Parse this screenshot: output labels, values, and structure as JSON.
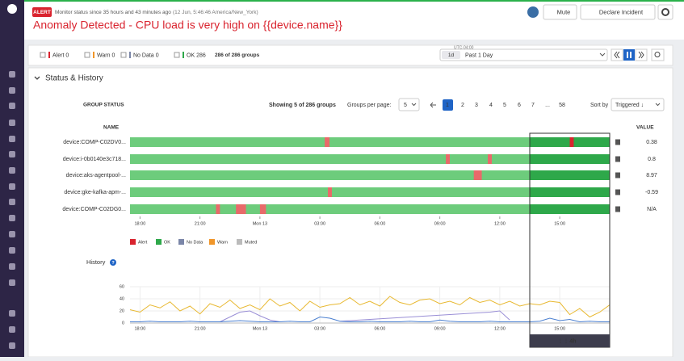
{
  "header": {
    "badge": "ALERT",
    "status": "Monitor status since 35 hours and 43 minutes ago",
    "timestamp": "(12 Jun, 5:46:46 America/New_York)",
    "buttons": [
      "Mute",
      "Declare Incident"
    ],
    "title": "Anomaly Detected - CPU load is very high on {{device.name}}"
  },
  "filters": {
    "items": [
      {
        "label": "Alert",
        "count": 0,
        "color": "#d9232e"
      },
      {
        "label": "Warn",
        "count": 0,
        "color": "#f0962a"
      },
      {
        "label": "No Data",
        "count": 0,
        "color": "#7b86a8"
      },
      {
        "label": "OK",
        "count": 286,
        "color": "#2ea84a"
      }
    ],
    "groups": "286 of 286 groups",
    "timezone": "UTC-04:00",
    "range_short": "1d",
    "range": "Past 1 Day"
  },
  "section": "Status & History",
  "group_status": {
    "label": "GROUP STATUS",
    "showing": "Showing 5 of 286 groups",
    "per_page_label": "Groups per page:",
    "per_page": 5,
    "pages": [
      1,
      2,
      3,
      4,
      5,
      6,
      7,
      "...",
      58
    ],
    "sort_label": "Sort by",
    "sort": "Triggered ↓",
    "name_header": "NAME",
    "value_header": "VALUE",
    "rows": [
      {
        "name": "device:COMP-C02DV0...",
        "value": 0.38,
        "alerts": [
          [
            9.74,
            9.98
          ],
          [
            22.0,
            22.2
          ]
        ]
      },
      {
        "name": "device:i-0b0140e3c718...",
        "value": 0.8,
        "alerts": [
          [
            15.8,
            16.0
          ],
          [
            17.9,
            18.1
          ]
        ]
      },
      {
        "name": "device:aks-agentpool-...",
        "value": 8.97,
        "alerts": [
          [
            17.2,
            17.6
          ]
        ]
      },
      {
        "name": "device:gke-kafka-apm-...",
        "value": -0.59,
        "alerts": [
          [
            9.9,
            10.1
          ]
        ]
      },
      {
        "name": "device:COMP-C02DG0...",
        "value": "N/A",
        "alerts": [
          [
            4.3,
            4.5
          ],
          [
            5.3,
            5.8
          ],
          [
            6.5,
            6.8
          ]
        ]
      }
    ],
    "legend": [
      {
        "label": "Alert",
        "color": "#d9232e"
      },
      {
        "label": "OK",
        "color": "#2ea84a"
      },
      {
        "label": "No Data",
        "color": "#7b86a8"
      },
      {
        "label": "Warn",
        "color": "#f0962a"
      },
      {
        "label": "Muted",
        "color": "#bbbbbb"
      }
    ]
  },
  "timeline": {
    "range": [
      0,
      24
    ],
    "ticks": [
      {
        "value": 0.5,
        "label": "18:00"
      },
      {
        "value": 3.5,
        "label": "21:00"
      },
      {
        "value": 6.5,
        "label": "Mon 13"
      },
      {
        "value": 9.5,
        "label": "03:00"
      },
      {
        "value": 12.5,
        "label": "06:00"
      },
      {
        "value": 15.5,
        "label": "09:00"
      },
      {
        "value": 18.5,
        "label": "12:00"
      },
      {
        "value": 21.5,
        "label": "15:00"
      }
    ],
    "selection": [
      20,
      24
    ],
    "selection_label": "4h"
  },
  "history": {
    "label": "History",
    "ylim": [
      0,
      60
    ],
    "yticks": [
      0,
      20,
      40,
      60
    ],
    "x": [
      0,
      0.5,
      1,
      1.5,
      2,
      2.5,
      3,
      3.5,
      4,
      4.5,
      5,
      5.5,
      6,
      6.5,
      7,
      7.5,
      8,
      8.5,
      9,
      9.5,
      10,
      10.5,
      11,
      11.5,
      12,
      12.5,
      13,
      13.5,
      14,
      14.5,
      15,
      15.5,
      16,
      16.5,
      17,
      17.5,
      18,
      18.5,
      19,
      19.5,
      20,
      20.5,
      21,
      21.5,
      22,
      22.5,
      23,
      23.5,
      24
    ],
    "series": [
      {
        "color": "#e8b830",
        "values": [
          22,
          18,
          30,
          25,
          35,
          20,
          28,
          15,
          32,
          26,
          38,
          24,
          30,
          22,
          40,
          28,
          34,
          20,
          36,
          26,
          30,
          32,
          42,
          30,
          36,
          28,
          44,
          34,
          30,
          38,
          40,
          32,
          36,
          30,
          42,
          34,
          38,
          30,
          36,
          28,
          32,
          30,
          36,
          34,
          14,
          24,
          10,
          18,
          30
        ]
      },
      {
        "color": "#9a8fd6",
        "values": [
          null,
          null,
          null,
          null,
          null,
          null,
          null,
          null,
          null,
          2,
          10,
          18,
          20,
          12,
          5,
          2,
          null,
          null,
          null,
          null,
          null,
          3,
          4,
          5,
          6,
          7,
          8,
          9,
          10,
          11,
          12,
          13,
          14,
          15,
          16,
          17,
          18,
          20,
          5,
          null,
          null,
          null,
          null,
          null,
          null,
          null,
          null,
          null,
          null
        ]
      },
      {
        "color": "#4a7fd0",
        "values": [
          2,
          2,
          3,
          2,
          2,
          2,
          3,
          2,
          2,
          2,
          3,
          4,
          3,
          2,
          2,
          2,
          3,
          2,
          2,
          10,
          8,
          3,
          2,
          2,
          3,
          2,
          2,
          2,
          3,
          2,
          2,
          5,
          3,
          2,
          2,
          2,
          3,
          2,
          2,
          2,
          2,
          3,
          8,
          4,
          6,
          2,
          3,
          2,
          2
        ]
      }
    ]
  }
}
